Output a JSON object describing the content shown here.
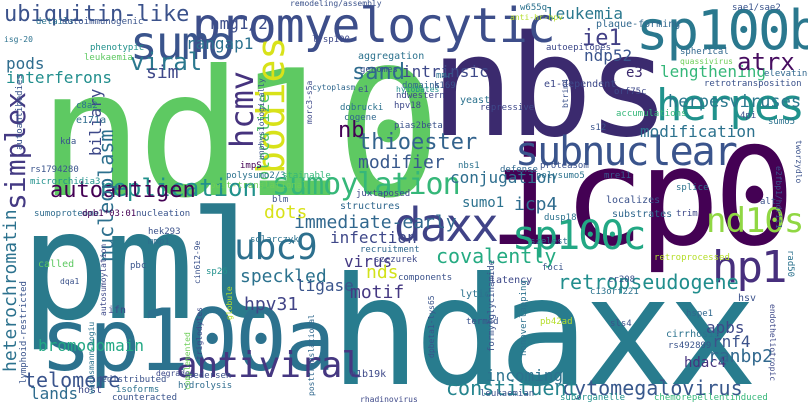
{
  "words": {
    "nbs": "nbs",
    "nd10": "nd10",
    "pml": "pml",
    "hdaxx": "hdaxx",
    "icp0": "icp0",
    "sp100a": "sp100a",
    "promyelocytic": "promyelocytic",
    "sp100b": "sp100b",
    "sumo": "sumo",
    "ubiquitin_like": "ubiquitin-like",
    "leukemia": "leukemia",
    "daxx": "daxx",
    "sumoylation": "sumoylation",
    "subnuclear": "subnuclear",
    "bodies": "bodies",
    "hcmv": "hcmv",
    "herpes": "herpes",
    "sp100c": "sp100c",
    "antiviral": "antiviral",
    "ubc9": "ubc9",
    "nd10s": "nd10s",
    "hp1": "hp1",
    "simplex": "simplex",
    "replication": "replication",
    "autoantigen": "autoantigen",
    "retropseudogene": "retropseudogene",
    "cytomegalovirus": "cytomegalovirus",
    "constituent": "constituent",
    "thioester": "thioester",
    "atrx": "atrx",
    "herpesviruses": "herpesviruses",
    "viral": "viral",
    "sand": "sand",
    "sim": "sim",
    "rangap1": "rangap1",
    "hmg1_2": "hmg1/2",
    "intrinsic": "intrinsic",
    "ie1": "ie1",
    "ndp52": "ndp52",
    "e3": "e3",
    "lengthening": "lengthening",
    "pods": "pods",
    "interferons": "interferons",
    "nucleoplasm": "nucleoplasm",
    "colocalize": "colocalize",
    "nb": "nb",
    "modification": "modification",
    "icp4": "icp4",
    "sumo1": "sumo1",
    "modifier": "modifier",
    "conjugation": "conjugation",
    "immediate_early": "immediate-early",
    "infection": "infection",
    "dots": "dots",
    "covalently": "covalently",
    "virus": "virus",
    "nds": "nds",
    "speckled": "speckled",
    "ligase": "ligase",
    "motif": "motif",
    "hpv31": "hpv31",
    "bromodomain": "bromodomain",
    "heterochromatin": "heterochromatin",
    "telomere": "telomere",
    "lands": "lands",
    "incoming": "incoming",
    "hdac4": "hdac4",
    "apbs": "apbs",
    "rnf4": "rnf4",
    "ranbp2": "ranbp2",
    "biliary": "biliary",
    "details": "details",
    "autoimmunogenic": "autoimmunogenic",
    "isg20": "isg-20",
    "rs": "rs",
    "autoantibodies": "autoantibodies",
    "leukaemia": "leukaemia",
    "phenotypic": "phenotypic",
    "lysp100": "lysp100",
    "aggregation": "aggregation",
    "genomes": "genomes",
    "domains": "domains",
    "ndwestern": "ndwestern",
    "mmr": "mmr",
    "k169": "k169",
    "yeast": "yeast",
    "hyiobates": "hyiobates",
    "e1": "e1",
    "hpv18": "hpv18",
    "dobrucki": "dobrucki",
    "cogene": "cogene",
    "pias2beta": "pias2beta",
    "c8a2": "c8a2",
    "e171a": "e171a",
    "impS": "impS",
    "polysumo2_3": "polysumo2/3",
    "rs1794280": "rs1794280",
    "microrchidia3": "microrchidia3",
    "post_translational": "post-translational",
    "stainable": "stainable",
    "nbs1": "nbs1",
    "sumoproteome": "sumoproteome",
    "dpb1": "dpb1*03:01",
    "nucleation": "nucleation",
    "blm": "blm",
    "structures": "structures",
    "juxtaposed": "juxtaposed",
    "localizes": "localizes",
    "splice": "splice",
    "substrates": "substrates",
    "trim": "trim",
    "hmg13": "hmg13",
    "hek293": "hek293",
    "solarczyk": "solarczyk",
    "szelest": "szelest",
    "recruitment": "recruitment",
    "szczurek": "szczurek",
    "dusp18": "dusp18",
    "alt": "alt",
    "nhmg2": "nhmg2",
    "mmp1": "mmp1",
    "called": "called",
    "pbc": "pbc",
    "cin612_9e": "cin612-9e",
    "sp26": "sp26",
    "lymphoid_restricted": "lymphoid-restricted",
    "lytic": "lytic",
    "cr208": "cr208",
    "c13orf221": "c13orf221",
    "latency": "latency",
    "components": "components",
    "foci": "foci",
    "retroprocessed": "retroprocessed",
    "hsv": "hsv",
    "hspe1": "hspe1",
    "globule": "globule",
    "termed": "termed",
    "ifn": "ifn",
    "autosumoylation": "autosumoylation",
    "pb42ad": "pb42ad",
    "sls4": "sls4",
    "cirrhosis": "cirrhosis",
    "rs492899": "rs492899",
    "host": "host",
    "redistributed": "redistributed",
    "isoforms": "isoforms",
    "hydrolysis": "hydrolysis",
    "counteracted": "counteracted",
    "posttranslational": "posttranslational",
    "e1b19k": "e1b19k",
    "pedersen": "pedersen",
    "leukaemiam": "leukaemian",
    "suborganelle": "suborganelle",
    "chemorepellentinduced": "chemorepellentinduced",
    "endotheliotropic": "endotheliotropic",
    "rhadinovirus": "rhadinovirus",
    "wachsmann": "wachsmann-hogiu",
    "triglodytes": "triglodytes",
    "complemented": "complemented",
    "degrades": "degrades",
    "pia2": "pia2",
    "hsp": "hsp",
    "remodeling": "remodeling/assembly",
    "w655q": "w655q",
    "anti_hr": "anti-hr-hpv",
    "plaque_forming": "plaque-forming",
    "sae1": "sae1/sae2",
    "e1a": "e1a",
    "autoepitopes": "autoepitopes",
    "spherical": "spherical",
    "quassivirus": "quassivirus",
    "retrotransposition": "retrotransposition",
    "elevating": "elevating",
    "orf75c": "orf75c",
    "accumulations": "accumulations",
    "4pi": "4pi",
    "sumo5": "sumo5",
    "s12": "s12",
    "repressive": "repressive",
    "defense": "defense",
    "proteasom": "proteasom",
    "polysumo5": "polysumo5",
    "mre11": "mre11",
    "e1_dependent": "e1-dependent",
    "mutants": "mutants",
    "cytoplasm": "cytoplasm",
    "unphysiologically": "unphysiologically",
    "morc3": "morc3-s5a",
    "btrim4": "btrim4",
    "rad50": "rad50",
    "e2fbp1": "e2fbp1/hdrit1",
    "tworzydlo": "tworzydlo",
    "formylglycinamide": "formylglycinamide",
    "nonoverlapping": "nonoverlapping",
    "dpbeta": "dpbeta1-lys65",
    "ph_ph": "rhz2blm",
    "hmgg": "hmg13",
    "kda": "kda",
    "dqa1": "dqa1",
    "dqr": "dqr"
  },
  "colors": {
    "purple_dark": "#440154",
    "purple": "#482878",
    "indigo": "#3e4989",
    "blue": "#31688e",
    "teal_blue": "#26828e",
    "teal": "#1f9e89",
    "green_teal": "#35b779",
    "green": "#6ece58",
    "lime": "#b5de2b",
    "yellow": "#fde725"
  }
}
